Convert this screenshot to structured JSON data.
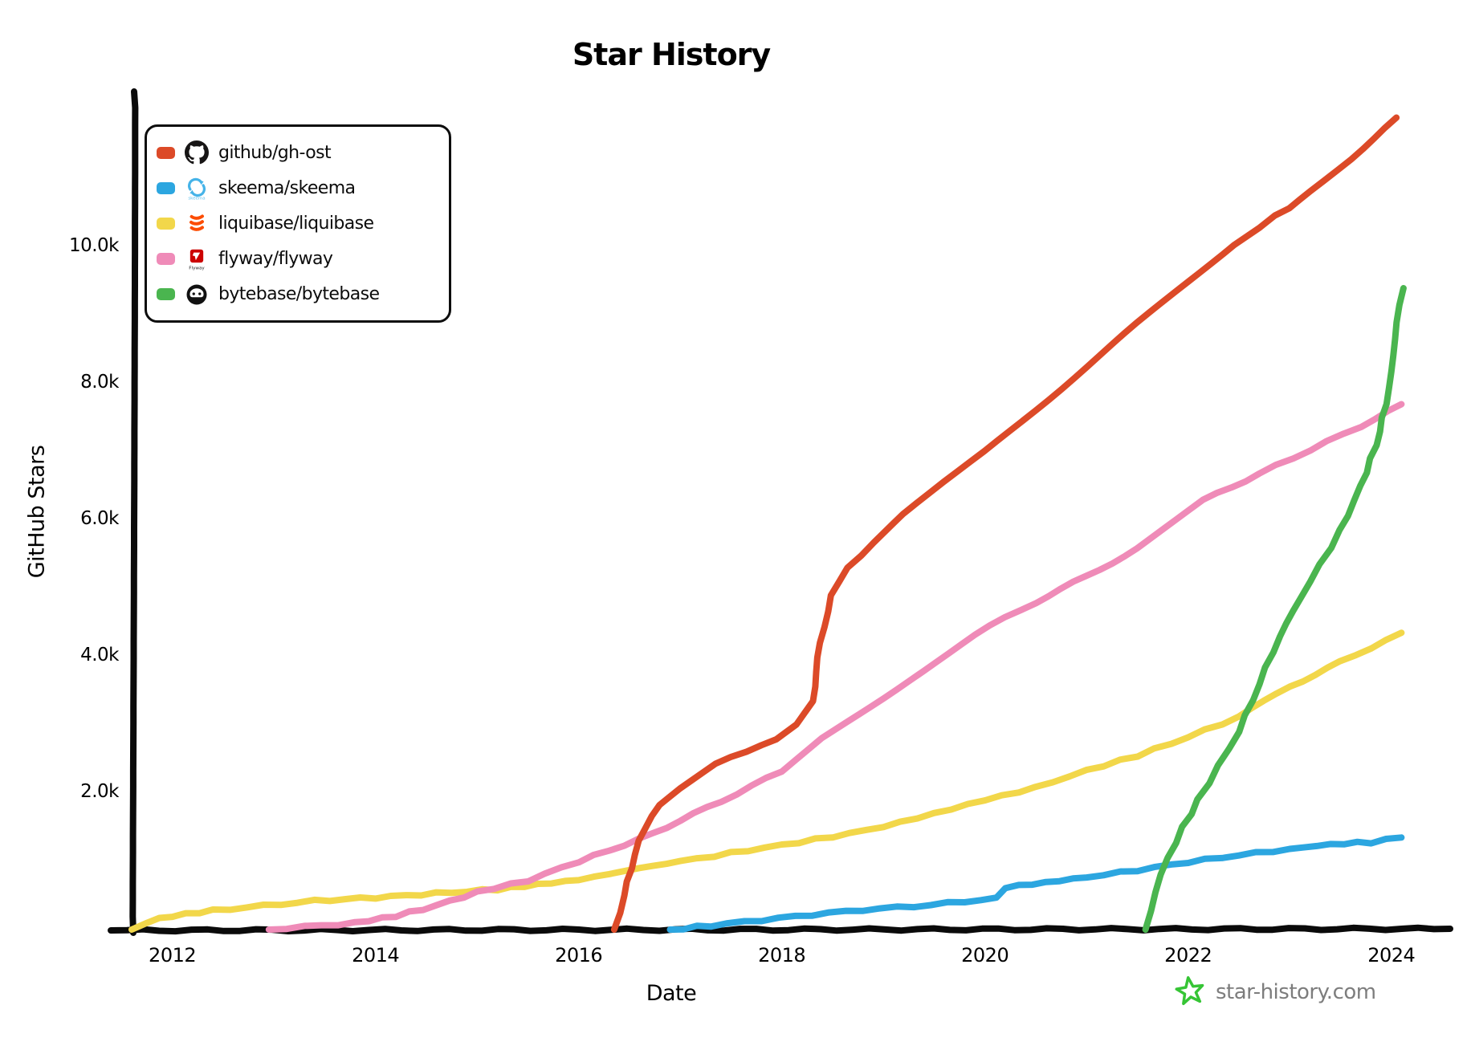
{
  "title": "Star History",
  "watermark": {
    "site": "star-history.com",
    "star_color": "#36c535",
    "text_color": "#7d7d7d"
  },
  "chart_data": {
    "type": "line",
    "title": "Star History",
    "xlabel": "Date",
    "ylabel": "GitHub Stars",
    "xlim": [
      2011.6,
      2024.5
    ],
    "ylim": [
      0,
      12200
    ],
    "grid": false,
    "legend_position": "top-left",
    "background": "#ffffff",
    "axis_color": "#0a0a0a",
    "xticks": [
      {
        "value": 2012,
        "label": "2012"
      },
      {
        "value": 2014,
        "label": "2014"
      },
      {
        "value": 2016,
        "label": "2016"
      },
      {
        "value": 2018,
        "label": "2018"
      },
      {
        "value": 2020,
        "label": "2020"
      },
      {
        "value": 2022,
        "label": "2022"
      },
      {
        "value": 2024,
        "label": "2024"
      }
    ],
    "yticks": [
      {
        "value": 2000,
        "label": "2.0k"
      },
      {
        "value": 4000,
        "label": "4.0k"
      },
      {
        "value": 6000,
        "label": "6.0k"
      },
      {
        "value": 8000,
        "label": "8.0k"
      },
      {
        "value": 10000,
        "label": "10.0k"
      }
    ],
    "series": [
      {
        "name": "github/gh-ost",
        "icon": "github-icon",
        "color": "#dc4a28",
        "points": [
          [
            2016.35,
            0
          ],
          [
            2016.45,
            500
          ],
          [
            2016.55,
            1100
          ],
          [
            2016.65,
            1500
          ],
          [
            2016.8,
            1820
          ],
          [
            2017.0,
            2080
          ],
          [
            2017.35,
            2420
          ],
          [
            2017.65,
            2620
          ],
          [
            2017.95,
            2780
          ],
          [
            2018.15,
            3000
          ],
          [
            2018.3,
            3350
          ],
          [
            2018.38,
            4200
          ],
          [
            2018.48,
            4900
          ],
          [
            2018.65,
            5300
          ],
          [
            2018.9,
            5680
          ],
          [
            2019.2,
            6080
          ],
          [
            2019.6,
            6550
          ],
          [
            2020.0,
            7000
          ],
          [
            2020.5,
            7620
          ],
          [
            2021.0,
            8250
          ],
          [
            2021.5,
            8880
          ],
          [
            2022.0,
            9500
          ],
          [
            2022.45,
            10050
          ],
          [
            2022.7,
            10300
          ],
          [
            2022.85,
            10480
          ],
          [
            2023.0,
            10560
          ],
          [
            2023.2,
            10820
          ],
          [
            2023.6,
            11300
          ],
          [
            2024.05,
            11900
          ]
        ]
      },
      {
        "name": "skeema/skeema",
        "icon": "skeema-icon",
        "color": "#2ca6e0",
        "points": [
          [
            2016.9,
            0
          ],
          [
            2017.3,
            60
          ],
          [
            2017.8,
            140
          ],
          [
            2018.3,
            220
          ],
          [
            2018.8,
            290
          ],
          [
            2019.3,
            340
          ],
          [
            2019.8,
            410
          ],
          [
            2020.12,
            460
          ],
          [
            2020.2,
            620
          ],
          [
            2020.6,
            690
          ],
          [
            2021.0,
            770
          ],
          [
            2021.5,
            870
          ],
          [
            2022.0,
            990
          ],
          [
            2022.5,
            1090
          ],
          [
            2023.0,
            1180
          ],
          [
            2023.4,
            1250
          ],
          [
            2023.8,
            1280
          ],
          [
            2024.1,
            1350
          ]
        ]
      },
      {
        "name": "liquibase/liquibase",
        "icon": "liquibase-icon",
        "color": "#f2d74a",
        "points": [
          [
            2011.6,
            0
          ],
          [
            2011.75,
            110
          ],
          [
            2012.0,
            200
          ],
          [
            2012.4,
            280
          ],
          [
            2012.9,
            350
          ],
          [
            2013.4,
            420
          ],
          [
            2014.0,
            470
          ],
          [
            2014.6,
            530
          ],
          [
            2015.2,
            590
          ],
          [
            2015.6,
            660
          ],
          [
            2016.0,
            730
          ],
          [
            2016.6,
            900
          ],
          [
            2017.0,
            1000
          ],
          [
            2017.5,
            1120
          ],
          [
            2018.0,
            1240
          ],
          [
            2018.5,
            1360
          ],
          [
            2019.0,
            1510
          ],
          [
            2019.5,
            1700
          ],
          [
            2020.0,
            1900
          ],
          [
            2020.5,
            2080
          ],
          [
            2021.0,
            2330
          ],
          [
            2021.5,
            2550
          ],
          [
            2022.0,
            2820
          ],
          [
            2022.5,
            3120
          ],
          [
            2023.0,
            3560
          ],
          [
            2023.5,
            3920
          ],
          [
            2024.1,
            4350
          ]
        ]
      },
      {
        "name": "flyway/flyway",
        "icon": "flyway-icon",
        "color": "#ef8bb8",
        "points": [
          [
            2012.95,
            0
          ],
          [
            2013.3,
            40
          ],
          [
            2013.8,
            100
          ],
          [
            2014.2,
            200
          ],
          [
            2014.6,
            350
          ],
          [
            2015.0,
            550
          ],
          [
            2015.5,
            720
          ],
          [
            2016.0,
            1000
          ],
          [
            2016.6,
            1320
          ],
          [
            2017.0,
            1600
          ],
          [
            2017.4,
            1880
          ],
          [
            2018.0,
            2320
          ],
          [
            2018.4,
            2800
          ],
          [
            2019.0,
            3400
          ],
          [
            2019.9,
            4330
          ],
          [
            2020.5,
            4800
          ],
          [
            2021.0,
            5180
          ],
          [
            2021.5,
            5580
          ],
          [
            2022.15,
            6290
          ],
          [
            2022.7,
            6680
          ],
          [
            2023.2,
            7030
          ],
          [
            2023.7,
            7380
          ],
          [
            2024.1,
            7700
          ]
        ]
      },
      {
        "name": "bytebase/bytebase",
        "icon": "bytebase-icon",
        "color": "#4ab54f",
        "points": [
          [
            2021.58,
            0
          ],
          [
            2021.68,
            550
          ],
          [
            2021.8,
            1050
          ],
          [
            2021.95,
            1500
          ],
          [
            2022.1,
            1900
          ],
          [
            2022.3,
            2400
          ],
          [
            2022.5,
            2900
          ],
          [
            2022.7,
            3600
          ],
          [
            2022.9,
            4300
          ],
          [
            2023.1,
            4850
          ],
          [
            2023.3,
            5350
          ],
          [
            2023.5,
            5850
          ],
          [
            2023.7,
            6500
          ],
          [
            2023.85,
            7100
          ],
          [
            2023.95,
            7700
          ],
          [
            2024.05,
            8900
          ],
          [
            2024.12,
            9400
          ]
        ]
      }
    ]
  }
}
